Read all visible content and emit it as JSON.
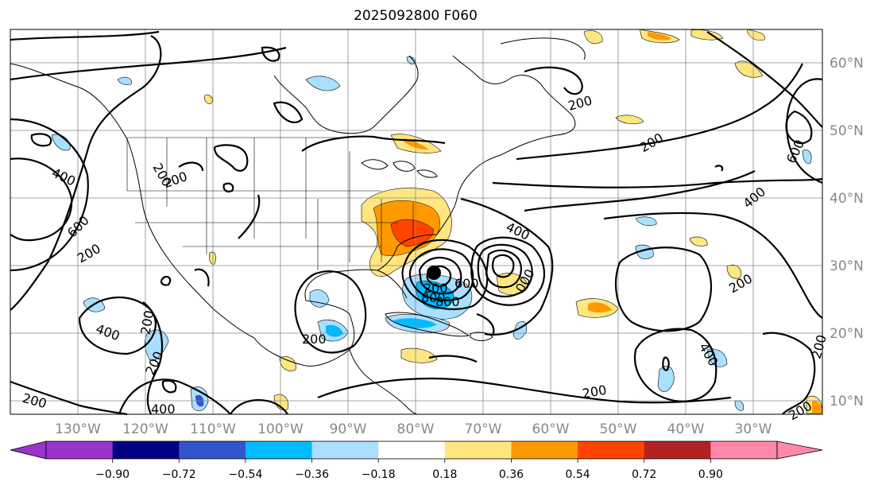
{
  "title": "2025092800 F060",
  "lon_labels": [
    "130°W",
    "120°W",
    "110°W",
    "100°W",
    "90°W",
    "80°W",
    "70°W",
    "60°W",
    "50°W",
    "40°W",
    "30°W"
  ],
  "lat_labels": [
    "60°N",
    "50°N",
    "40°N",
    "30°N",
    "20°N",
    "10°N"
  ],
  "colorbar": {
    "colors": [
      "#9933cc",
      "#000080",
      "#3355cc",
      "#00bbff",
      "#aadfff",
      "#ffffff",
      "#ffe680",
      "#ff9900",
      "#ff4400",
      "#b22222",
      "#ff88aa"
    ],
    "extend_low_color": "#9933cc",
    "extend_high_color": "#ff88aa",
    "tick_labels": [
      "−0.90",
      "−0.72",
      "−0.54",
      "−0.36",
      "−0.18",
      "0.18",
      "0.36",
      "0.54",
      "0.72",
      "0.90"
    ]
  },
  "contour_labels": [
    "200",
    "200",
    "200",
    "200",
    "200",
    "200",
    "200",
    "200",
    "200",
    "200",
    "200",
    "200",
    "200",
    "200",
    "400",
    "400",
    "400",
    "400",
    "400",
    "400",
    "600",
    "600",
    "600",
    "800",
    "800",
    "000"
  ],
  "storm_marker": "storm-center"
}
